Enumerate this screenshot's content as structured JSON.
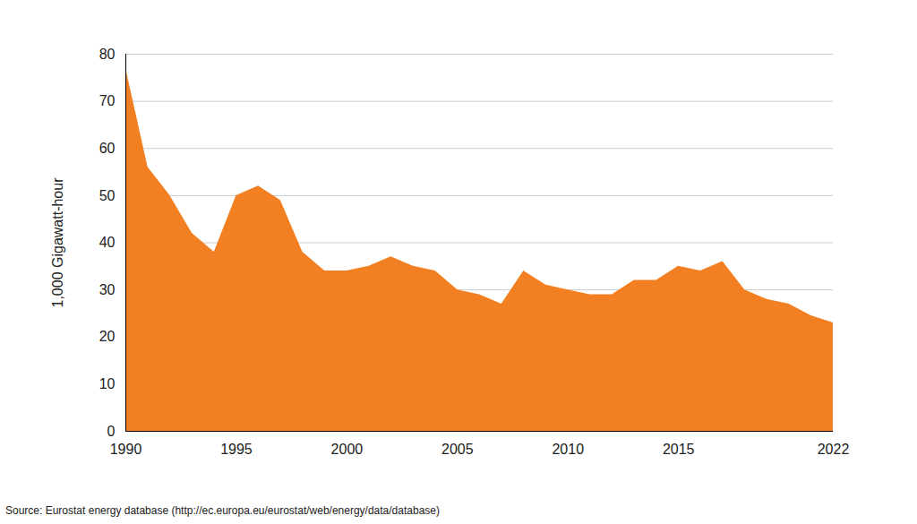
{
  "chart_data": {
    "type": "area",
    "y_label": "1,000 Gigawatt-hour",
    "source": "Source: Eurostat energy database (http://ec.europa.eu/eurostat/web/energy/data/database)",
    "x": [
      1990,
      1991,
      1992,
      1993,
      1994,
      1995,
      1996,
      1997,
      1998,
      1999,
      2000,
      2001,
      2002,
      2003,
      2004,
      2005,
      2006,
      2007,
      2008,
      2009,
      2010,
      2011,
      2012,
      2013,
      2014,
      2015,
      2016,
      2017,
      2018,
      2019,
      2020,
      2021,
      2022
    ],
    "values": [
      77,
      56,
      50,
      42,
      38,
      50,
      52,
      49,
      38,
      34,
      34,
      35,
      37,
      35,
      34,
      30,
      29,
      27,
      34,
      31,
      30,
      29,
      29,
      32,
      32,
      35,
      34,
      36,
      30,
      28,
      27,
      24.5,
      23
    ],
    "color": "#f28022",
    "xlim": [
      1990,
      2022
    ],
    "xticks": [
      1990,
      1995,
      2000,
      2005,
      2010,
      2015,
      2022
    ],
    "ylim": [
      0,
      80
    ],
    "yticks": [
      0,
      10,
      20,
      30,
      40,
      50,
      60,
      70,
      80
    ],
    "grid": true
  }
}
